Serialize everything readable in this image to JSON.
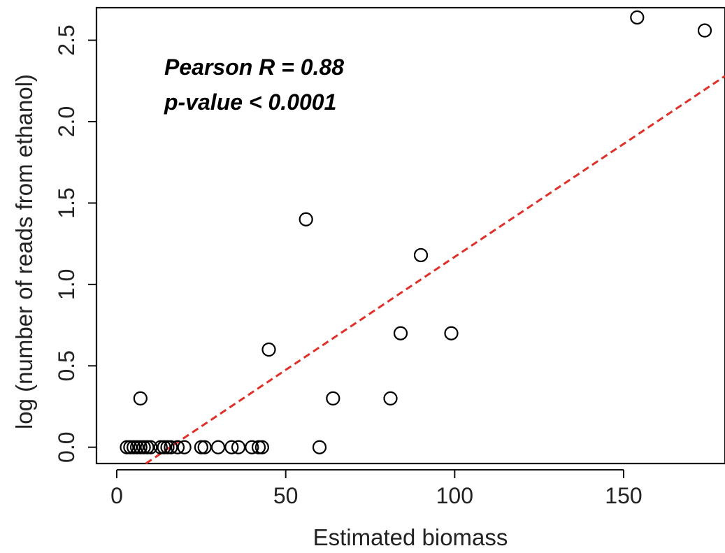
{
  "chart_data": {
    "type": "scatter",
    "title": "",
    "xlabel": "Estimated biomass",
    "ylabel": "log (number of reads from ethanol)",
    "xlim": [
      -6,
      180
    ],
    "ylim": [
      -0.1,
      2.7
    ],
    "x_ticks": [
      0,
      50,
      100,
      150
    ],
    "y_ticks": [
      0.0,
      0.5,
      1.0,
      1.5,
      2.0,
      2.5
    ],
    "x_tick_labels": [
      "0",
      "50",
      "100",
      "150"
    ],
    "y_tick_labels": [
      "0.0",
      "0.5",
      "1.0",
      "1.5",
      "2.0",
      "2.5"
    ],
    "grid": false,
    "annotations": [
      "Pearson R = 0.88",
      "p-value < 0.0001"
    ],
    "points": [
      {
        "x": 3,
        "y": 0
      },
      {
        "x": 4,
        "y": 0
      },
      {
        "x": 5,
        "y": 0
      },
      {
        "x": 6,
        "y": 0
      },
      {
        "x": 7,
        "y": 0
      },
      {
        "x": 8,
        "y": 0
      },
      {
        "x": 9,
        "y": 0
      },
      {
        "x": 10,
        "y": 0
      },
      {
        "x": 13,
        "y": 0
      },
      {
        "x": 14,
        "y": 0
      },
      {
        "x": 15,
        "y": 0
      },
      {
        "x": 16,
        "y": 0
      },
      {
        "x": 18,
        "y": 0
      },
      {
        "x": 20,
        "y": 0
      },
      {
        "x": 25,
        "y": 0
      },
      {
        "x": 26,
        "y": 0
      },
      {
        "x": 30,
        "y": 0
      },
      {
        "x": 34,
        "y": 0
      },
      {
        "x": 36,
        "y": 0
      },
      {
        "x": 40,
        "y": 0
      },
      {
        "x": 42,
        "y": 0
      },
      {
        "x": 43,
        "y": 0
      },
      {
        "x": 60,
        "y": 0
      },
      {
        "x": 7,
        "y": 0.3
      },
      {
        "x": 45,
        "y": 0.6
      },
      {
        "x": 56,
        "y": 1.4
      },
      {
        "x": 64,
        "y": 0.3
      },
      {
        "x": 81,
        "y": 0.3
      },
      {
        "x": 84,
        "y": 0.7
      },
      {
        "x": 90,
        "y": 1.18
      },
      {
        "x": 99,
        "y": 0.7
      },
      {
        "x": 154,
        "y": 2.64
      },
      {
        "x": 174,
        "y": 2.56
      }
    ],
    "fit_line": {
      "color": "#e0302a",
      "style": "dashed",
      "x": [
        8.6,
        180
      ],
      "y": [
        -0.1,
        2.28
      ]
    },
    "marker": {
      "shape": "open-circle",
      "color": "#000000"
    }
  }
}
